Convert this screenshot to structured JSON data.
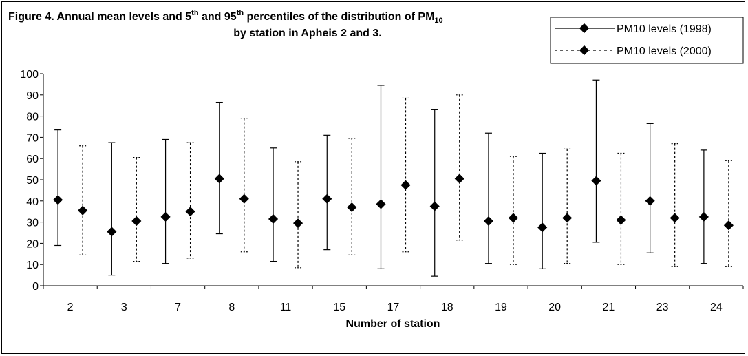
{
  "chart_data": {
    "type": "errorbar",
    "title": {
      "line1_prefix": "Figure 4. Annual mean levels and 5",
      "line1_sup1": "th",
      "line1_mid": " and 95",
      "line1_sup2": "th",
      "line1_suffix": " percentiles of the distribution of PM",
      "line1_sub": "10",
      "line2": "by station in Apheis 2 and 3."
    },
    "xlabel": "Number of station",
    "ylabel": "",
    "ylim": [
      0,
      100
    ],
    "y_ticks": [
      "0",
      "10",
      "20",
      "30",
      "40",
      "50",
      "60",
      "70",
      "80",
      "90",
      "100"
    ],
    "categories": [
      "2",
      "3",
      "7",
      "8",
      "11",
      "15",
      "17",
      "18",
      "19",
      "20",
      "21",
      "23",
      "24"
    ],
    "legend_position": "top-right",
    "grid": false,
    "series": [
      {
        "name": "PM10 levels (1998)",
        "line_style": "solid",
        "color": "#000000",
        "mean": [
          40.5,
          25.5,
          32.5,
          50.5,
          31.5,
          41,
          38.5,
          37.5,
          30.5,
          27.5,
          49.5,
          40,
          32.5
        ],
        "p5": [
          19,
          5,
          10.5,
          24.5,
          11.5,
          17,
          8,
          4.5,
          10.5,
          8,
          20.5,
          15.5,
          10.5
        ],
        "p95": [
          73.5,
          67.5,
          69,
          86.5,
          65,
          71,
          94.5,
          83,
          72,
          62.5,
          97,
          76.5,
          64
        ]
      },
      {
        "name": "PM10 levels (2000)",
        "line_style": "dashed",
        "color": "#000000",
        "mean": [
          35.5,
          30.5,
          35,
          41,
          29.5,
          37,
          47.5,
          50.5,
          32,
          32,
          31,
          32,
          28.5
        ],
        "p5": [
          14.5,
          11.5,
          13,
          16,
          8.5,
          14.5,
          16,
          21.5,
          10,
          10.5,
          10,
          9,
          9
        ],
        "p95": [
          66,
          60.5,
          67.5,
          79,
          58.5,
          69.5,
          88.5,
          90,
          61,
          64.5,
          62.5,
          67,
          59
        ]
      }
    ]
  }
}
